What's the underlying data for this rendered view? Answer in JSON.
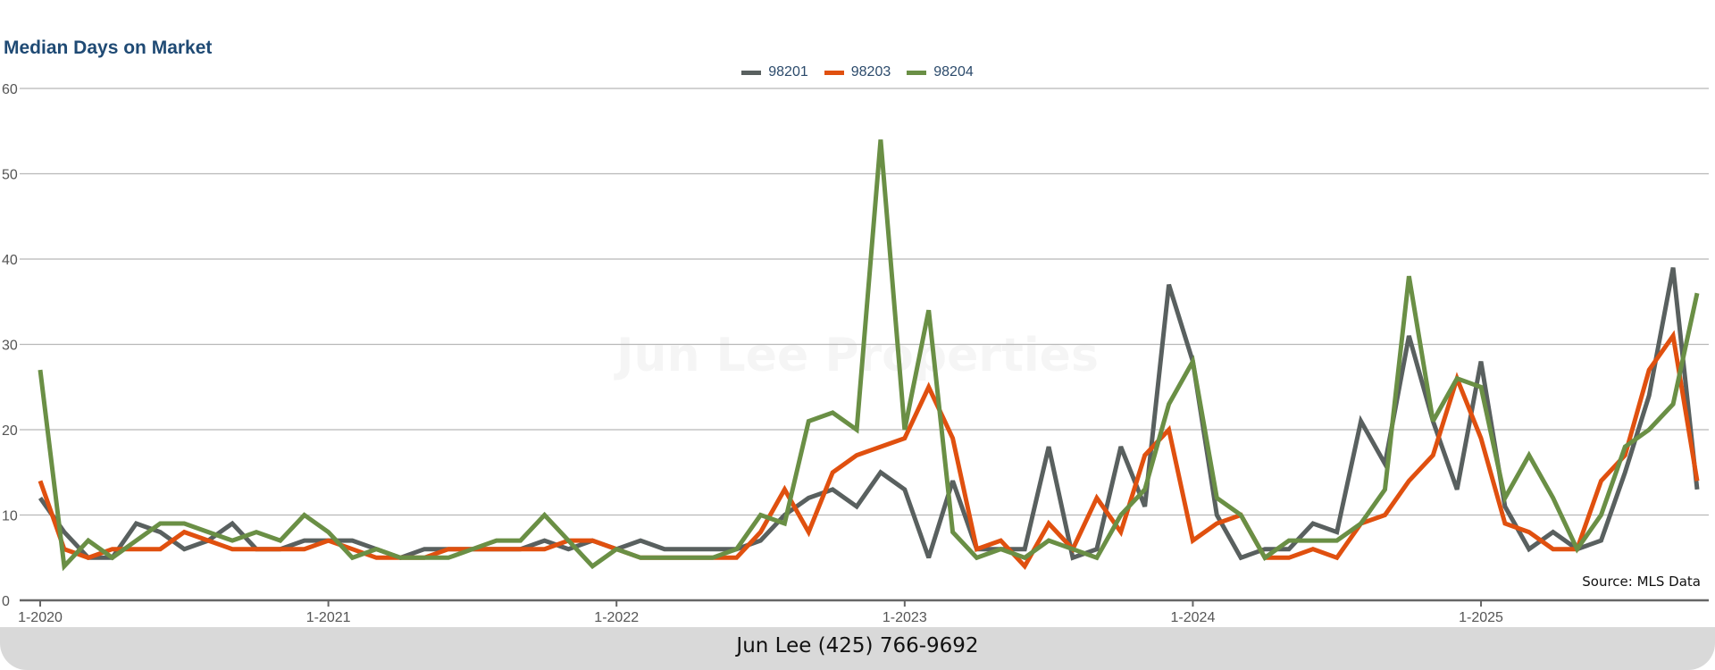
{
  "watermark": "Jun Lee Properties",
  "footer": "Jun Lee (425) 766-9692",
  "chart_data": {
    "type": "line",
    "title": "Median Days on Market",
    "source": "Source: MLS Data",
    "xlabel": "",
    "ylabel": "",
    "ylim": [
      0,
      60
    ],
    "yticks": [
      "0",
      "10",
      "20",
      "30",
      "40",
      "50",
      "60"
    ],
    "x_start": "1-2020",
    "x_interval": "month",
    "xticks": [
      {
        "label": "1-2020",
        "index": 0
      },
      {
        "label": "1-2021",
        "index": 12
      },
      {
        "label": "1-2022",
        "index": 24
      },
      {
        "label": "1-2023",
        "index": 36
      },
      {
        "label": "1-2024",
        "index": 48
      },
      {
        "label": "1-2025",
        "index": 60
      }
    ],
    "grid": true,
    "legend_position": "top-center",
    "series": [
      {
        "name": "98201",
        "color": "#59605f",
        "values": [
          12,
          8,
          5,
          5,
          9,
          8,
          6,
          7,
          9,
          6,
          6,
          7,
          7,
          7,
          6,
          5,
          6,
          6,
          6,
          6,
          6,
          7,
          6,
          7,
          6,
          7,
          6,
          6,
          6,
          6,
          7,
          10,
          12,
          13,
          11,
          15,
          13,
          5,
          14,
          6,
          6,
          6,
          18,
          5,
          6,
          18,
          11,
          37,
          28,
          10,
          5,
          6,
          6,
          9,
          8,
          21,
          16,
          31,
          21,
          13,
          28,
          11,
          6,
          8,
          6,
          7,
          15,
          24,
          39,
          13
        ]
      },
      {
        "name": "98203",
        "color": "#e0500f",
        "values": [
          14,
          6,
          5,
          6,
          6,
          6,
          8,
          7,
          6,
          6,
          6,
          6,
          7,
          6,
          5,
          5,
          5,
          6,
          6,
          6,
          6,
          6,
          7,
          7,
          6,
          5,
          5,
          5,
          5,
          5,
          8,
          13,
          8,
          15,
          17,
          18,
          19,
          25,
          19,
          6,
          7,
          4,
          9,
          6,
          12,
          8,
          17,
          20,
          7,
          9,
          10,
          5,
          5,
          6,
          5,
          9,
          10,
          14,
          17,
          26,
          19,
          9,
          8,
          6,
          6,
          14,
          17,
          27,
          31,
          14
        ]
      },
      {
        "name": "98204",
        "color": "#6a8f45",
        "values": [
          27,
          4,
          7,
          5,
          7,
          9,
          9,
          8,
          7,
          8,
          7,
          10,
          8,
          5,
          6,
          5,
          5,
          5,
          6,
          7,
          7,
          10,
          7,
          4,
          6,
          5,
          5,
          5,
          5,
          6,
          10,
          9,
          21,
          22,
          20,
          54,
          20,
          34,
          8,
          5,
          6,
          5,
          7,
          6,
          5,
          10,
          13,
          23,
          28,
          12,
          10,
          5,
          7,
          7,
          7,
          9,
          13,
          38,
          21,
          26,
          25,
          12,
          17,
          12,
          6,
          10,
          18,
          20,
          23,
          36
        ]
      }
    ]
  }
}
